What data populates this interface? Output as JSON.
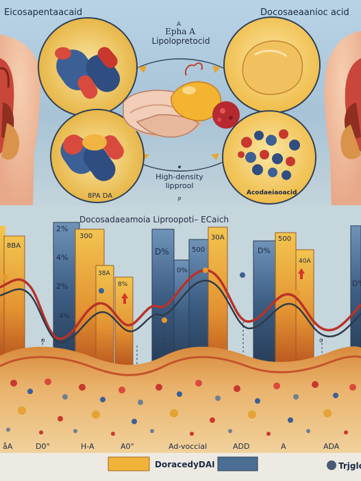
{
  "texts": {
    "top_left_title": "Eicosapentaacaid",
    "top_right_title": "Docosaeaanioc acid",
    "center_small": "A",
    "center_title_1": "Epha A",
    "center_title_2": "Lipolopretocid",
    "hdl_label_1": "High-density",
    "hdl_label_2": "lipprool",
    "hdl_mark": "P",
    "left_circle_label": "8PA DA",
    "right_circle_label": "Acodaeiaoacid",
    "chart_title": "Docosadaeamoia Liproopoti– ECaich",
    "bar_labels": [
      "2%",
      "8BA",
      "4%",
      "2%",
      "4%",
      "300",
      "38A",
      "8%",
      "D%",
      "0%",
      "500",
      "30A",
      "D%",
      "500",
      "40A",
      "D%"
    ],
    "bottom_labels": [
      "åA",
      "D0°",
      "H-A",
      "A0°",
      "Ad-voccial",
      "ADD",
      "A",
      "ADA"
    ],
    "legend_1": "DoracedyDAI",
    "legend_2": "Trjglc"
  },
  "colors": {
    "sky": "#a9c6da",
    "bar_orange": "#e9a23a",
    "bar_blue": "#3b5b80",
    "wave_red": "#b8322a",
    "wave_dark": "#2f3a4a"
  }
}
